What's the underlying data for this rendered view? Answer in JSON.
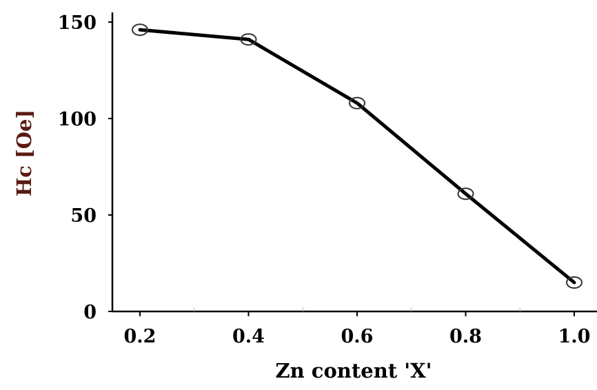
{
  "chart_data": {
    "type": "line",
    "title": "",
    "xlabel": "Zn content 'X'",
    "ylabel": "Hc [Oe]",
    "x": [
      0.2,
      0.4,
      0.6,
      0.8,
      1.0
    ],
    "series": [
      {
        "name": "",
        "values": [
          146,
          141,
          108,
          61,
          15
        ]
      }
    ],
    "xlim": [
      0.15,
      1.05
    ],
    "ylim": [
      0,
      155
    ],
    "xticks": [
      0.2,
      0.4,
      0.6,
      0.8,
      1.0
    ],
    "xtick_labels": [
      "0.2",
      "0.4",
      "0.6",
      "0.8",
      "1.0"
    ],
    "yticks": [
      0,
      50,
      100,
      150
    ],
    "ytick_labels": [
      "0",
      "50",
      "100",
      "150"
    ],
    "grid": false,
    "legend": "none",
    "marker": "open-circle",
    "line_color": "#000000",
    "ylabel_color": "#5a1a12"
  }
}
